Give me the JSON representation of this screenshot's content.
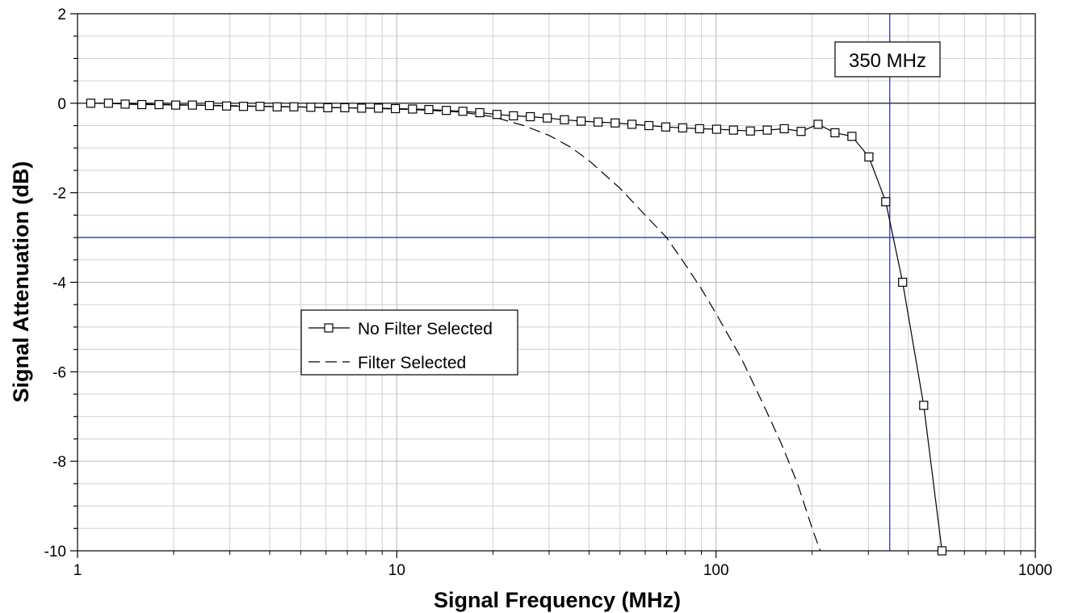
{
  "chart_data": {
    "type": "line",
    "xscale": "log",
    "xlim": [
      1,
      1000
    ],
    "ylim": [
      -10,
      2
    ],
    "xlabel": "Signal Frequency (MHz)",
    "ylabel": "Signal Attenuation (dB)",
    "x_ticks": [
      "1",
      "10",
      "100",
      "1000"
    ],
    "y_ticks": [
      "2",
      "0",
      "-2",
      "-4",
      "-6",
      "-8",
      "-10"
    ],
    "grid": true,
    "legend_position": "middle-left",
    "annotation": "350 MHz",
    "reference_lines": {
      "vertical_x": 350,
      "horizontal_y": -3,
      "zero_line_y": 0,
      "color": "#2a3aa8"
    },
    "series": [
      {
        "name": "No Filter Selected",
        "style": "solid-square-markers",
        "x": [
          1.1,
          1.25,
          1.41,
          1.59,
          1.8,
          2.03,
          2.29,
          2.59,
          2.93,
          3.31,
          3.73,
          4.22,
          4.76,
          5.38,
          6.08,
          6.87,
          7.76,
          8.76,
          9.9,
          11.2,
          12.6,
          14.3,
          16.1,
          18.2,
          20.6,
          23.2,
          26.2,
          29.6,
          33.5,
          37.8,
          42.7,
          48.3,
          54.5,
          61.6,
          69.6,
          78.6,
          88.8,
          100.4,
          113.4,
          128.1,
          144.7,
          163.5,
          184.7,
          208.7,
          235.8,
          266.4,
          301,
          340,
          384,
          447,
          510
        ],
        "y": [
          0.0,
          0.0,
          -0.02,
          -0.03,
          -0.03,
          -0.04,
          -0.04,
          -0.05,
          -0.06,
          -0.07,
          -0.07,
          -0.08,
          -0.08,
          -0.09,
          -0.1,
          -0.1,
          -0.11,
          -0.11,
          -0.12,
          -0.13,
          -0.14,
          -0.16,
          -0.18,
          -0.21,
          -0.25,
          -0.28,
          -0.3,
          -0.33,
          -0.37,
          -0.4,
          -0.42,
          -0.44,
          -0.47,
          -0.5,
          -0.53,
          -0.55,
          -0.57,
          -0.58,
          -0.6,
          -0.62,
          -0.6,
          -0.57,
          -0.63,
          -0.47,
          -0.66,
          -0.74,
          -1.2,
          -2.2,
          -4.0,
          -6.75,
          -10.0
        ]
      },
      {
        "name": "Filter Selected",
        "style": "dashed",
        "x": [
          1.1,
          2,
          4,
          8,
          12,
          16,
          20,
          25,
          30,
          35,
          40,
          50,
          60,
          70,
          80,
          90,
          100,
          120,
          140,
          160,
          180,
          200,
          212
        ],
        "y": [
          0.0,
          -0.03,
          -0.07,
          -0.11,
          -0.15,
          -0.2,
          -0.3,
          -0.5,
          -0.72,
          -0.98,
          -1.28,
          -1.9,
          -2.5,
          -3.0,
          -3.6,
          -4.15,
          -4.7,
          -5.7,
          -6.7,
          -7.6,
          -8.5,
          -9.5,
          -10.0
        ]
      }
    ]
  }
}
